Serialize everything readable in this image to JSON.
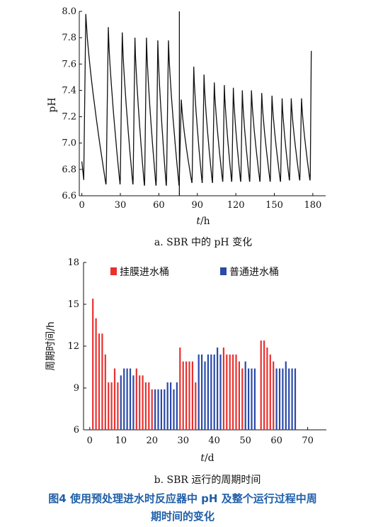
{
  "chart_data": [
    {
      "type": "line",
      "caption": "a. SBR 中的 pH 变化",
      "xlabel_italic": "t",
      "xlabel_unit": "/h",
      "ylabel": "pH",
      "xlim": [
        -2,
        190
      ],
      "ylim": [
        6.6,
        8.0
      ],
      "xticks": [
        0,
        30,
        60,
        90,
        120,
        150,
        180
      ],
      "yticks": [
        "6.6",
        "6.8",
        "7.0",
        "7.2",
        "7.4",
        "7.6",
        "7.8",
        "8.0"
      ],
      "cycle_starts": [
        0,
        1.5,
        19,
        30,
        40,
        49,
        58,
        66,
        76,
        86,
        94,
        102,
        110,
        117,
        124,
        131,
        139,
        147,
        155,
        162,
        170,
        178
      ],
      "cycles": [
        {
          "start": 1.5,
          "end": 19,
          "max": 7.98,
          "min": 6.69
        },
        {
          "start": 19,
          "end": 30,
          "max": 7.88,
          "min": 6.69
        },
        {
          "start": 30,
          "end": 40,
          "max": 7.84,
          "min": 6.69
        },
        {
          "start": 40,
          "end": 49,
          "max": 7.8,
          "min": 6.68
        },
        {
          "start": 49,
          "end": 58,
          "max": 7.8,
          "min": 6.68
        },
        {
          "start": 58,
          "end": 66,
          "max": 7.78,
          "min": 6.68
        },
        {
          "start": 66,
          "end": 76,
          "max": 7.78,
          "min": 6.68
        },
        {
          "start": 76,
          "end": 86,
          "max": 7.33,
          "min": 6.7
        },
        {
          "start": 86,
          "end": 94,
          "max": 7.58,
          "min": 6.7
        },
        {
          "start": 94,
          "end": 102,
          "max": 7.52,
          "min": 6.7
        },
        {
          "start": 102,
          "end": 110,
          "max": 7.46,
          "min": 6.71
        },
        {
          "start": 110,
          "end": 117,
          "max": 7.44,
          "min": 6.71
        },
        {
          "start": 117,
          "end": 124,
          "max": 7.42,
          "min": 6.71
        },
        {
          "start": 124,
          "end": 131,
          "max": 7.4,
          "min": 6.71
        },
        {
          "start": 131,
          "end": 139,
          "max": 7.4,
          "min": 6.71
        },
        {
          "start": 139,
          "end": 147,
          "max": 7.38,
          "min": 6.71
        },
        {
          "start": 147,
          "end": 155,
          "max": 7.36,
          "min": 6.71
        },
        {
          "start": 155,
          "end": 162,
          "max": 7.34,
          "min": 6.72
        },
        {
          "start": 162,
          "end": 170,
          "max": 7.34,
          "min": 6.72
        },
        {
          "start": 170,
          "end": 178,
          "max": 7.34,
          "min": 6.72
        }
      ],
      "initial": {
        "start": 0,
        "end": 1.5,
        "from": 6.86,
        "to": 6.72
      },
      "final_rise": {
        "at": 178,
        "to": 7.7
      },
      "divider_x": 76,
      "divider_y": [
        6.6,
        8.0
      ]
    },
    {
      "type": "bar",
      "caption": "b. SBR 运行的周期时间",
      "xlabel_italic": "t",
      "xlabel_unit": "/d",
      "ylabel": "周期时间/h",
      "xlim": [
        -2,
        76
      ],
      "ylim": [
        6,
        18
      ],
      "xticks": [
        0,
        10,
        20,
        30,
        40,
        50,
        60,
        70
      ],
      "yticks": [
        "6",
        "9",
        "12",
        "15",
        "18"
      ],
      "series": [
        {
          "name": "挂膜进水桶",
          "color": "#e8312f",
          "x": [
            1,
            2,
            3,
            4,
            5,
            6,
            7,
            8,
            9,
            15,
            16,
            17,
            18,
            19,
            20,
            29,
            30,
            31,
            32,
            33,
            34,
            43,
            44,
            45,
            46,
            47,
            48,
            49,
            55,
            56,
            57,
            58,
            59
          ],
          "values": [
            15.4,
            14.0,
            12.9,
            12.9,
            11.4,
            9.4,
            9.4,
            10.4,
            9.4,
            10.4,
            9.9,
            9.9,
            9.4,
            9.4,
            8.9,
            11.9,
            10.9,
            10.9,
            10.9,
            10.9,
            9.4,
            11.9,
            11.4,
            11.4,
            11.4,
            11.4,
            10.9,
            10.4,
            12.4,
            12.4,
            11.9,
            11.4,
            10.9
          ]
        },
        {
          "name": "普通进水桶",
          "color": "#2a4aa8",
          "x": [
            10,
            11,
            12,
            13,
            14,
            21,
            22,
            23,
            24,
            25,
            26,
            27,
            28,
            35,
            36,
            37,
            38,
            39,
            40,
            41,
            42,
            50,
            51,
            52,
            53,
            60,
            61,
            62,
            63,
            64,
            65,
            66
          ],
          "values": [
            9.9,
            10.4,
            10.4,
            10.4,
            9.9,
            8.9,
            8.9,
            8.9,
            8.9,
            9.4,
            9.4,
            8.9,
            9.4,
            11.4,
            11.4,
            10.9,
            11.4,
            11.4,
            11.4,
            11.9,
            11.4,
            10.9,
            10.4,
            10.4,
            10.4,
            10.4,
            10.4,
            10.4,
            10.9,
            10.4,
            10.4,
            10.4
          ]
        }
      ],
      "legend_position": "top"
    }
  ],
  "figure_caption_line1": "图4   使用预处理进水时反应器中 pH 及整个运行过程中周",
  "figure_caption_line2": "期时间的变化"
}
